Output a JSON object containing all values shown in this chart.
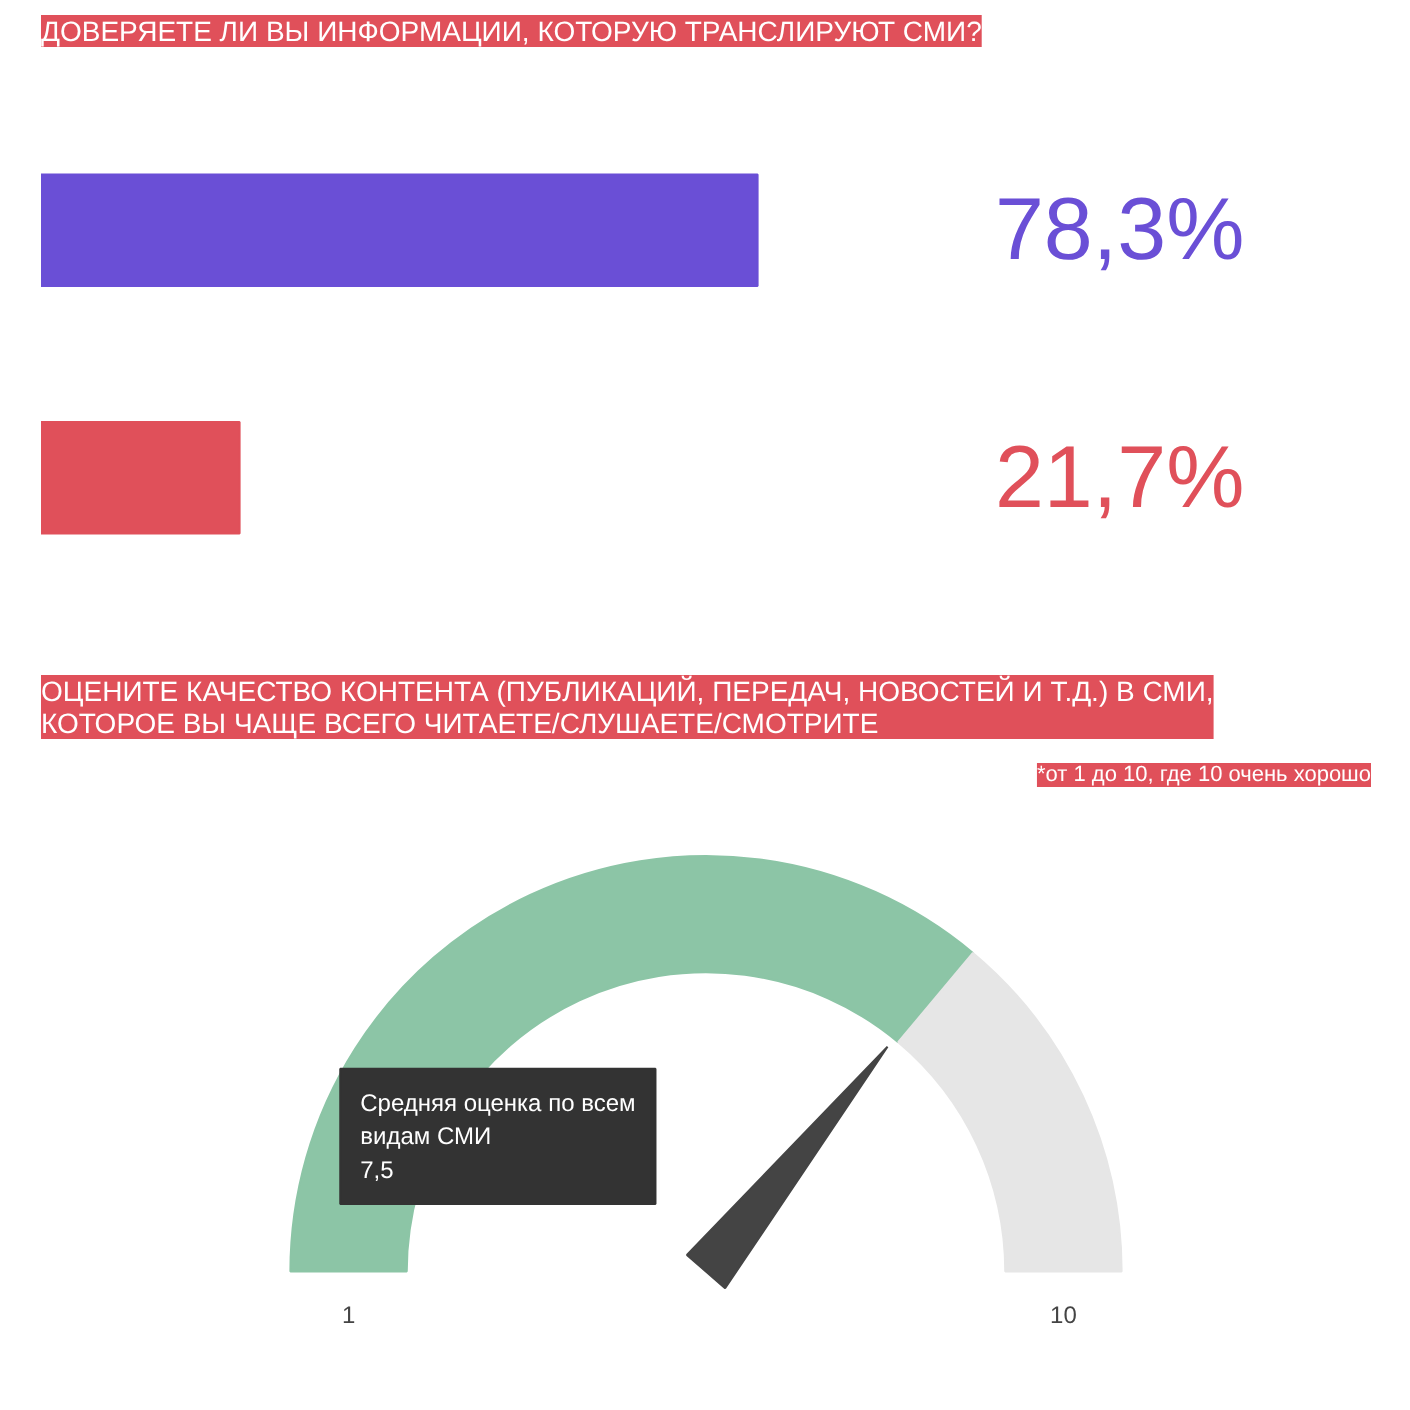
{
  "chart_data": [
    {
      "type": "bar",
      "orientation": "horizontal",
      "title": "ДОВЕРЯЕТЕ ЛИ ВЫ ИНФОРМАЦИИ, КОТОРУЮ ТРАНСЛИРУЮТ СМИ?",
      "categories": [
        null,
        null
      ],
      "values": [
        78.3,
        21.7
      ],
      "colors": [
        "#6a4fd6",
        "#e0505a"
      ],
      "value_labels": [
        "78,3%",
        "21,7%"
      ],
      "tick_labels": false,
      "grid": false
    },
    {
      "type": "donut",
      "title": "ОЦЕНИТЕ КАЧЕСТВО КОНТЕНТА (ПУБЛИКАЦИЙ, ПЕРЕДАЧ, НОВОСТЕЙ И Т.Д.) В СМИ, КОТОРОЕ ВЫ ЧАЩЕ ВСЕГО ЧИТАЕТЕ/СЛУШАЕТЕ/СМОТРИТЕ",
      "subtitle": "*от 1 до 10, где 10 очень хорошо",
      "categories": [
        "Средняя оценка по всем видам СМИ",
        null
      ],
      "values": [
        72.2,
        27.8
      ],
      "colors": [
        "#8cc5a6",
        "#e6e6e6"
      ],
      "needle": "Средняя оценка по всем видам СМИ",
      "annotations": [
        "7,5",
        "1",
        "10"
      ]
    }
  ]
}
